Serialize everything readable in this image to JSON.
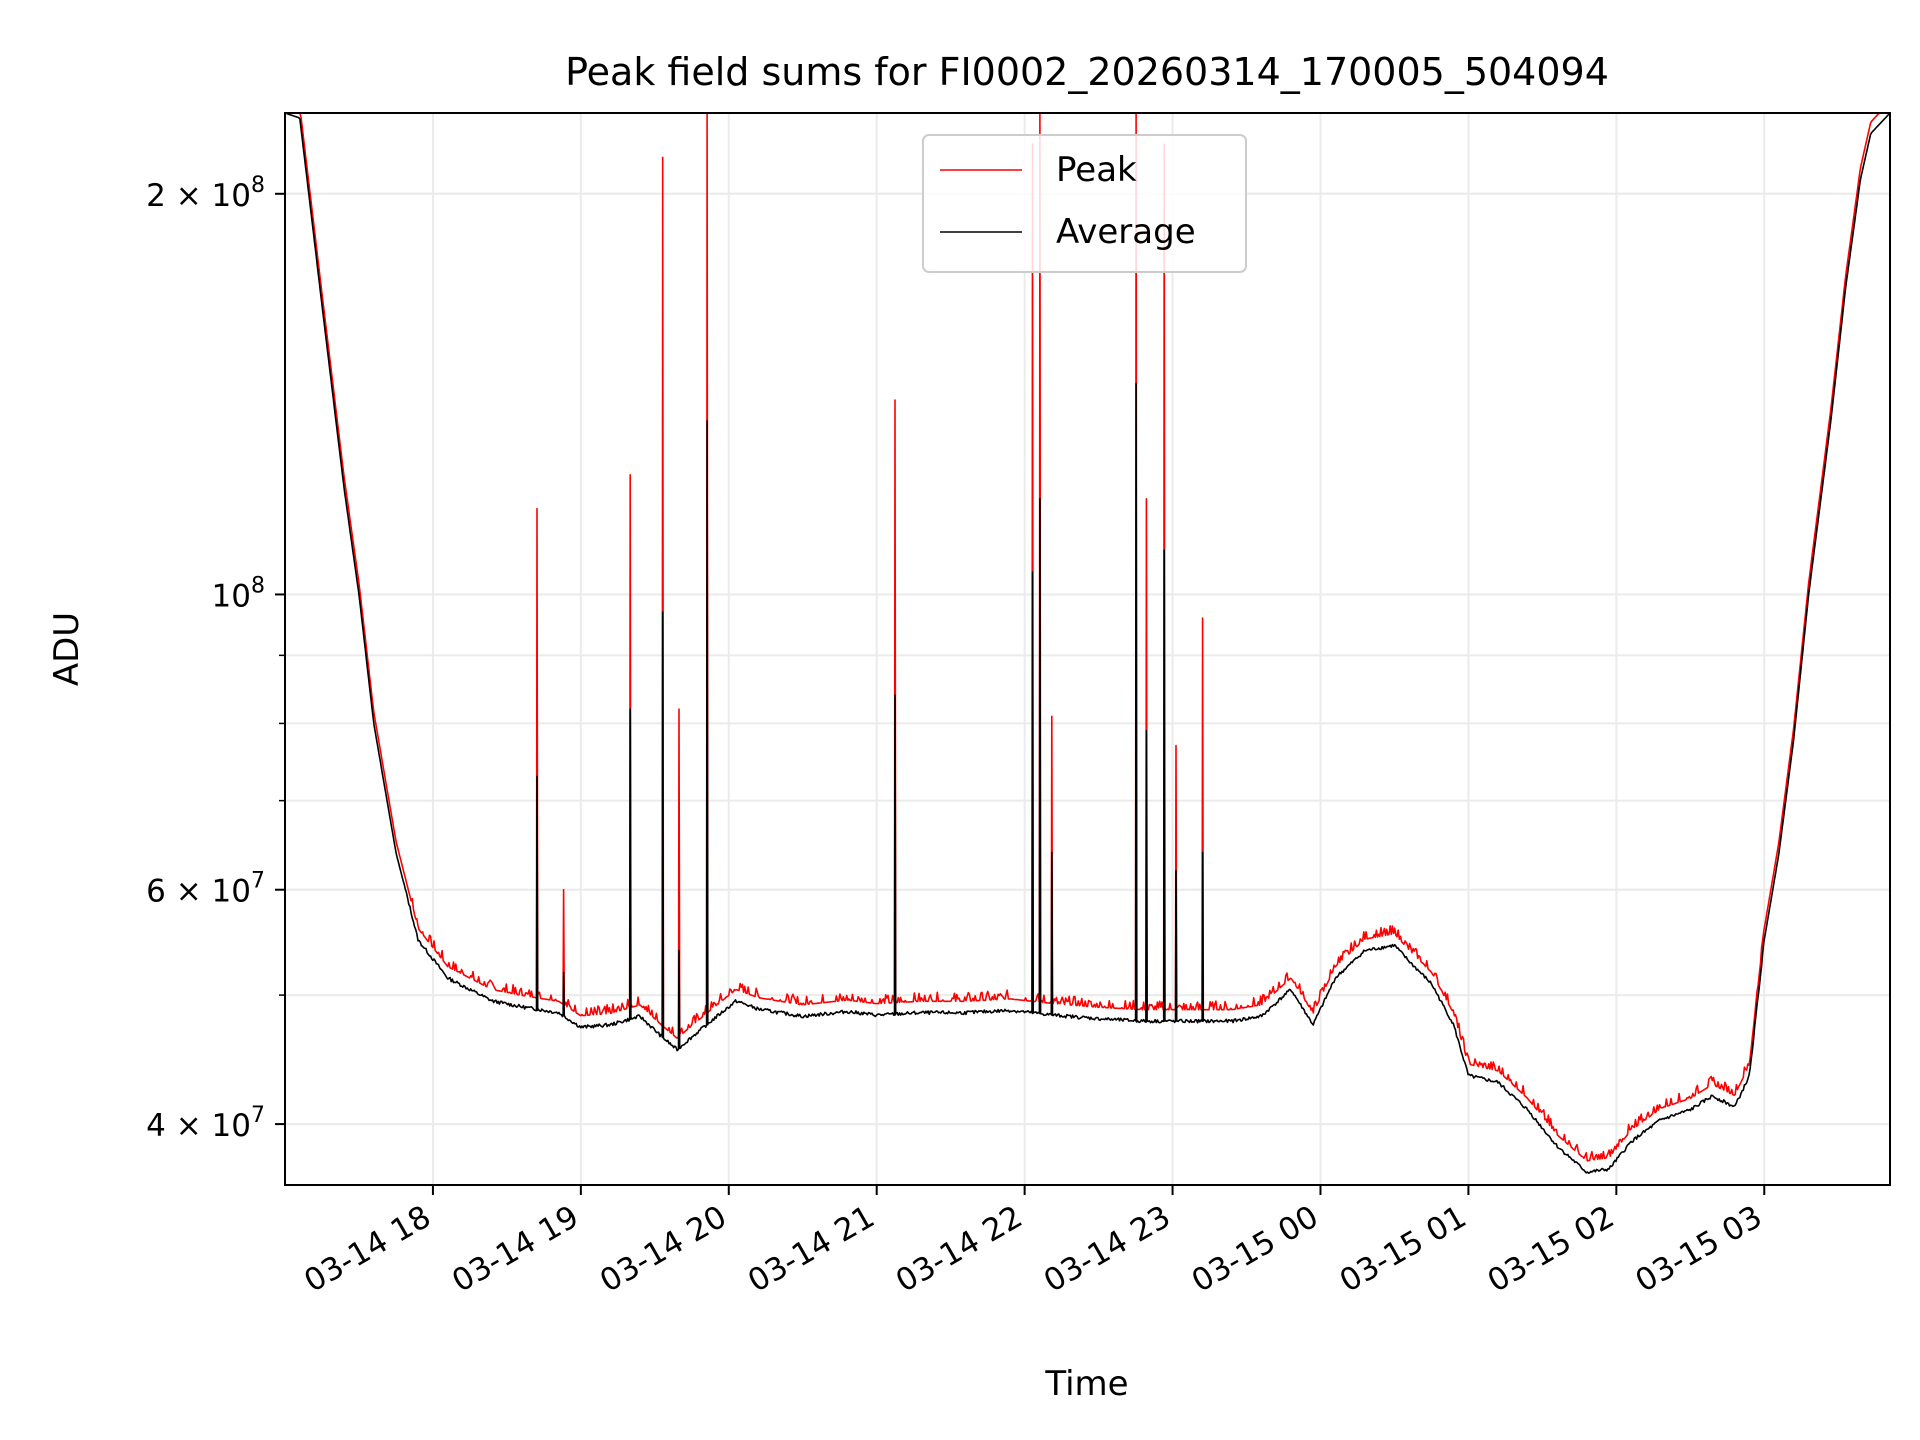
{
  "chart_data": {
    "type": "line",
    "title": "Peak field sums for FI0002_20260314_170005_504094",
    "xlabel": "Time",
    "ylabel": "ADU",
    "yscale": "log",
    "ylim": [
      36000000,
      230000000
    ],
    "xlim_hours": [
      17.0,
      27.85
    ],
    "grid": true,
    "legend_position": "upper center",
    "x_ticks": [
      {
        "label": "03-14 18",
        "hour": 18
      },
      {
        "label": "03-14 19",
        "hour": 19
      },
      {
        "label": "03-14 20",
        "hour": 20
      },
      {
        "label": "03-14 21",
        "hour": 21
      },
      {
        "label": "03-14 22",
        "hour": 22
      },
      {
        "label": "03-14 23",
        "hour": 23
      },
      {
        "label": "03-15 00",
        "hour": 24
      },
      {
        "label": "03-15 01",
        "hour": 25
      },
      {
        "label": "03-15 02",
        "hour": 26
      },
      {
        "label": "03-15 03",
        "hour": 27
      }
    ],
    "y_ticks": [
      {
        "label": "4 × 10",
        "exp": "7",
        "value": 40000000
      },
      {
        "label": "6 × 10",
        "exp": "7",
        "value": 60000000
      },
      {
        "label": "10",
        "exp": "8",
        "value": 100000000
      },
      {
        "label": "2 × 10",
        "exp": "8",
        "value": 200000000
      }
    ],
    "series": [
      {
        "name": "Peak",
        "color": "#ff0000",
        "baseline_offset": 1.02,
        "spikes": [
          {
            "hour": 18.7,
            "value": 116000000
          },
          {
            "hour": 18.88,
            "value": 60000000
          },
          {
            "hour": 19.33,
            "value": 123000000
          },
          {
            "hour": 19.55,
            "value": 213000000
          },
          {
            "hour": 19.66,
            "value": 82000000
          },
          {
            "hour": 19.85,
            "value": 230000000
          },
          {
            "hour": 21.12,
            "value": 140000000
          },
          {
            "hour": 22.05,
            "value": 218000000
          },
          {
            "hour": 22.1,
            "value": 230000000
          },
          {
            "hour": 22.18,
            "value": 81000000
          },
          {
            "hour": 22.75,
            "value": 230000000
          },
          {
            "hour": 22.82,
            "value": 118000000
          },
          {
            "hour": 22.94,
            "value": 218000000
          },
          {
            "hour": 23.02,
            "value": 77000000
          },
          {
            "hour": 23.2,
            "value": 96000000
          }
        ]
      },
      {
        "name": "Average",
        "color": "#000000",
        "baseline_offset": 1.0,
        "spikes": [
          {
            "hour": 18.7,
            "value": 73000000
          },
          {
            "hour": 18.88,
            "value": 52000000
          },
          {
            "hour": 19.33,
            "value": 82000000
          },
          {
            "hour": 19.55,
            "value": 97000000
          },
          {
            "hour": 19.66,
            "value": 54000000
          },
          {
            "hour": 19.85,
            "value": 135000000
          },
          {
            "hour": 21.12,
            "value": 84000000
          },
          {
            "hour": 22.05,
            "value": 104000000
          },
          {
            "hour": 22.1,
            "value": 118000000
          },
          {
            "hour": 22.18,
            "value": 64000000
          },
          {
            "hour": 22.75,
            "value": 144000000
          },
          {
            "hour": 22.82,
            "value": 79000000
          },
          {
            "hour": 22.94,
            "value": 108000000
          },
          {
            "hour": 23.02,
            "value": 62000000
          },
          {
            "hour": 23.2,
            "value": 64000000
          }
        ]
      }
    ],
    "baseline": [
      [
        17.0,
        230000000
      ],
      [
        17.1,
        228000000
      ],
      [
        17.25,
        165000000
      ],
      [
        17.4,
        120000000
      ],
      [
        17.5,
        100000000
      ],
      [
        17.6,
        80000000
      ],
      [
        17.75,
        64000000
      ],
      [
        17.9,
        55000000
      ],
      [
        18.1,
        51500000
      ],
      [
        18.4,
        49500000
      ],
      [
        18.6,
        49000000
      ],
      [
        18.85,
        48500000
      ],
      [
        19.0,
        47300000
      ],
      [
        19.2,
        47500000
      ],
      [
        19.4,
        48200000
      ],
      [
        19.55,
        46500000
      ],
      [
        19.65,
        45500000
      ],
      [
        19.75,
        46500000
      ],
      [
        19.9,
        48000000
      ],
      [
        20.05,
        49500000
      ],
      [
        20.2,
        48800000
      ],
      [
        20.5,
        48200000
      ],
      [
        20.8,
        48600000
      ],
      [
        21.0,
        48300000
      ],
      [
        21.3,
        48500000
      ],
      [
        21.6,
        48500000
      ],
      [
        21.9,
        48700000
      ],
      [
        22.2,
        48300000
      ],
      [
        22.5,
        48000000
      ],
      [
        22.8,
        47800000
      ],
      [
        23.1,
        47800000
      ],
      [
        23.4,
        47800000
      ],
      [
        23.6,
        48200000
      ],
      [
        23.8,
        50500000
      ],
      [
        23.95,
        47500000
      ],
      [
        24.1,
        51500000
      ],
      [
        24.3,
        54000000
      ],
      [
        24.5,
        54500000
      ],
      [
        24.6,
        53000000
      ],
      [
        24.75,
        51000000
      ],
      [
        24.9,
        47500000
      ],
      [
        25.0,
        43500000
      ],
      [
        25.2,
        43000000
      ],
      [
        25.4,
        41000000
      ],
      [
        25.6,
        38500000
      ],
      [
        25.8,
        36800000
      ],
      [
        25.95,
        37000000
      ],
      [
        26.1,
        38800000
      ],
      [
        26.3,
        40300000
      ],
      [
        26.5,
        41000000
      ],
      [
        26.65,
        42000000
      ],
      [
        26.8,
        41200000
      ],
      [
        26.9,
        43500000
      ],
      [
        27.0,
        55000000
      ],
      [
        27.1,
        64000000
      ],
      [
        27.2,
        78000000
      ],
      [
        27.3,
        100000000
      ],
      [
        27.45,
        135000000
      ],
      [
        27.55,
        170000000
      ],
      [
        27.65,
        205000000
      ],
      [
        27.72,
        222000000
      ],
      [
        27.85,
        230000000
      ]
    ]
  }
}
